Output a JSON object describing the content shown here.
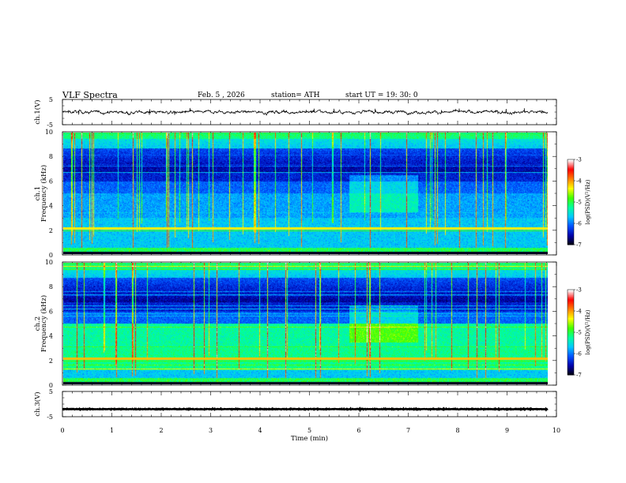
{
  "header": {
    "title": "VLF  Spectra",
    "date": "Feb. 5  , 2026",
    "station": "station= ATH",
    "start": "start  UT  =    19: 30: 0"
  },
  "chart_data": [
    {
      "type": "line",
      "name": "ch1-waveform",
      "ylabel": "ch.1(V)",
      "ylim": [
        -5,
        5
      ],
      "yticks": [
        "5",
        "-5"
      ],
      "xlim": [
        0,
        10
      ],
      "data_end_min": 9.83,
      "baseline_v": 0,
      "noise_amplitude_v": 1.0
    },
    {
      "type": "heatmap",
      "name": "ch1-spectrogram",
      "ylabel": "ch.1 Frequency (kHz)",
      "ylim": [
        0,
        10
      ],
      "yticks": [
        "0",
        "2",
        "4",
        "6",
        "8",
        "10"
      ],
      "colorbar": {
        "label": "log(PSD)(V²/Hz)",
        "range": [
          -7,
          -3
        ],
        "ticks": [
          "-3",
          "-4",
          "-5",
          "-6",
          "-7"
        ]
      }
    },
    {
      "type": "heatmap",
      "name": "ch2-spectrogram",
      "ylabel": "ch.2 Frequency (kHz)",
      "ylim": [
        0,
        10
      ],
      "yticks": [
        "0",
        "2",
        "4",
        "6",
        "8",
        "10"
      ],
      "colorbar": {
        "label": "log(PSD)(V²/Hz)",
        "range": [
          -7,
          -3
        ],
        "ticks": [
          "-3",
          "-4",
          "-5",
          "-6",
          "-7"
        ]
      }
    },
    {
      "type": "line",
      "name": "ch3-waveform",
      "ylabel": "ch.3(V)",
      "ylim": [
        -5,
        5
      ],
      "yticks": [
        "5",
        "-5"
      ],
      "xlim": [
        0,
        10
      ],
      "data_end_min": 9.83,
      "baseline_v": -2,
      "noise_amplitude_v": 0.15
    }
  ],
  "xaxis": {
    "label": "Time  (min)",
    "ticks": [
      "0",
      "1",
      "2",
      "3",
      "4",
      "5",
      "6",
      "7",
      "8",
      "9",
      "10"
    ]
  },
  "colors": {
    "colormap": [
      "#000000",
      "#0000a8",
      "#0050ff",
      "#00c8ff",
      "#00ffa0",
      "#40ff00",
      "#ffff00",
      "#ff8000",
      "#ff0000",
      "#ffffff"
    ]
  }
}
